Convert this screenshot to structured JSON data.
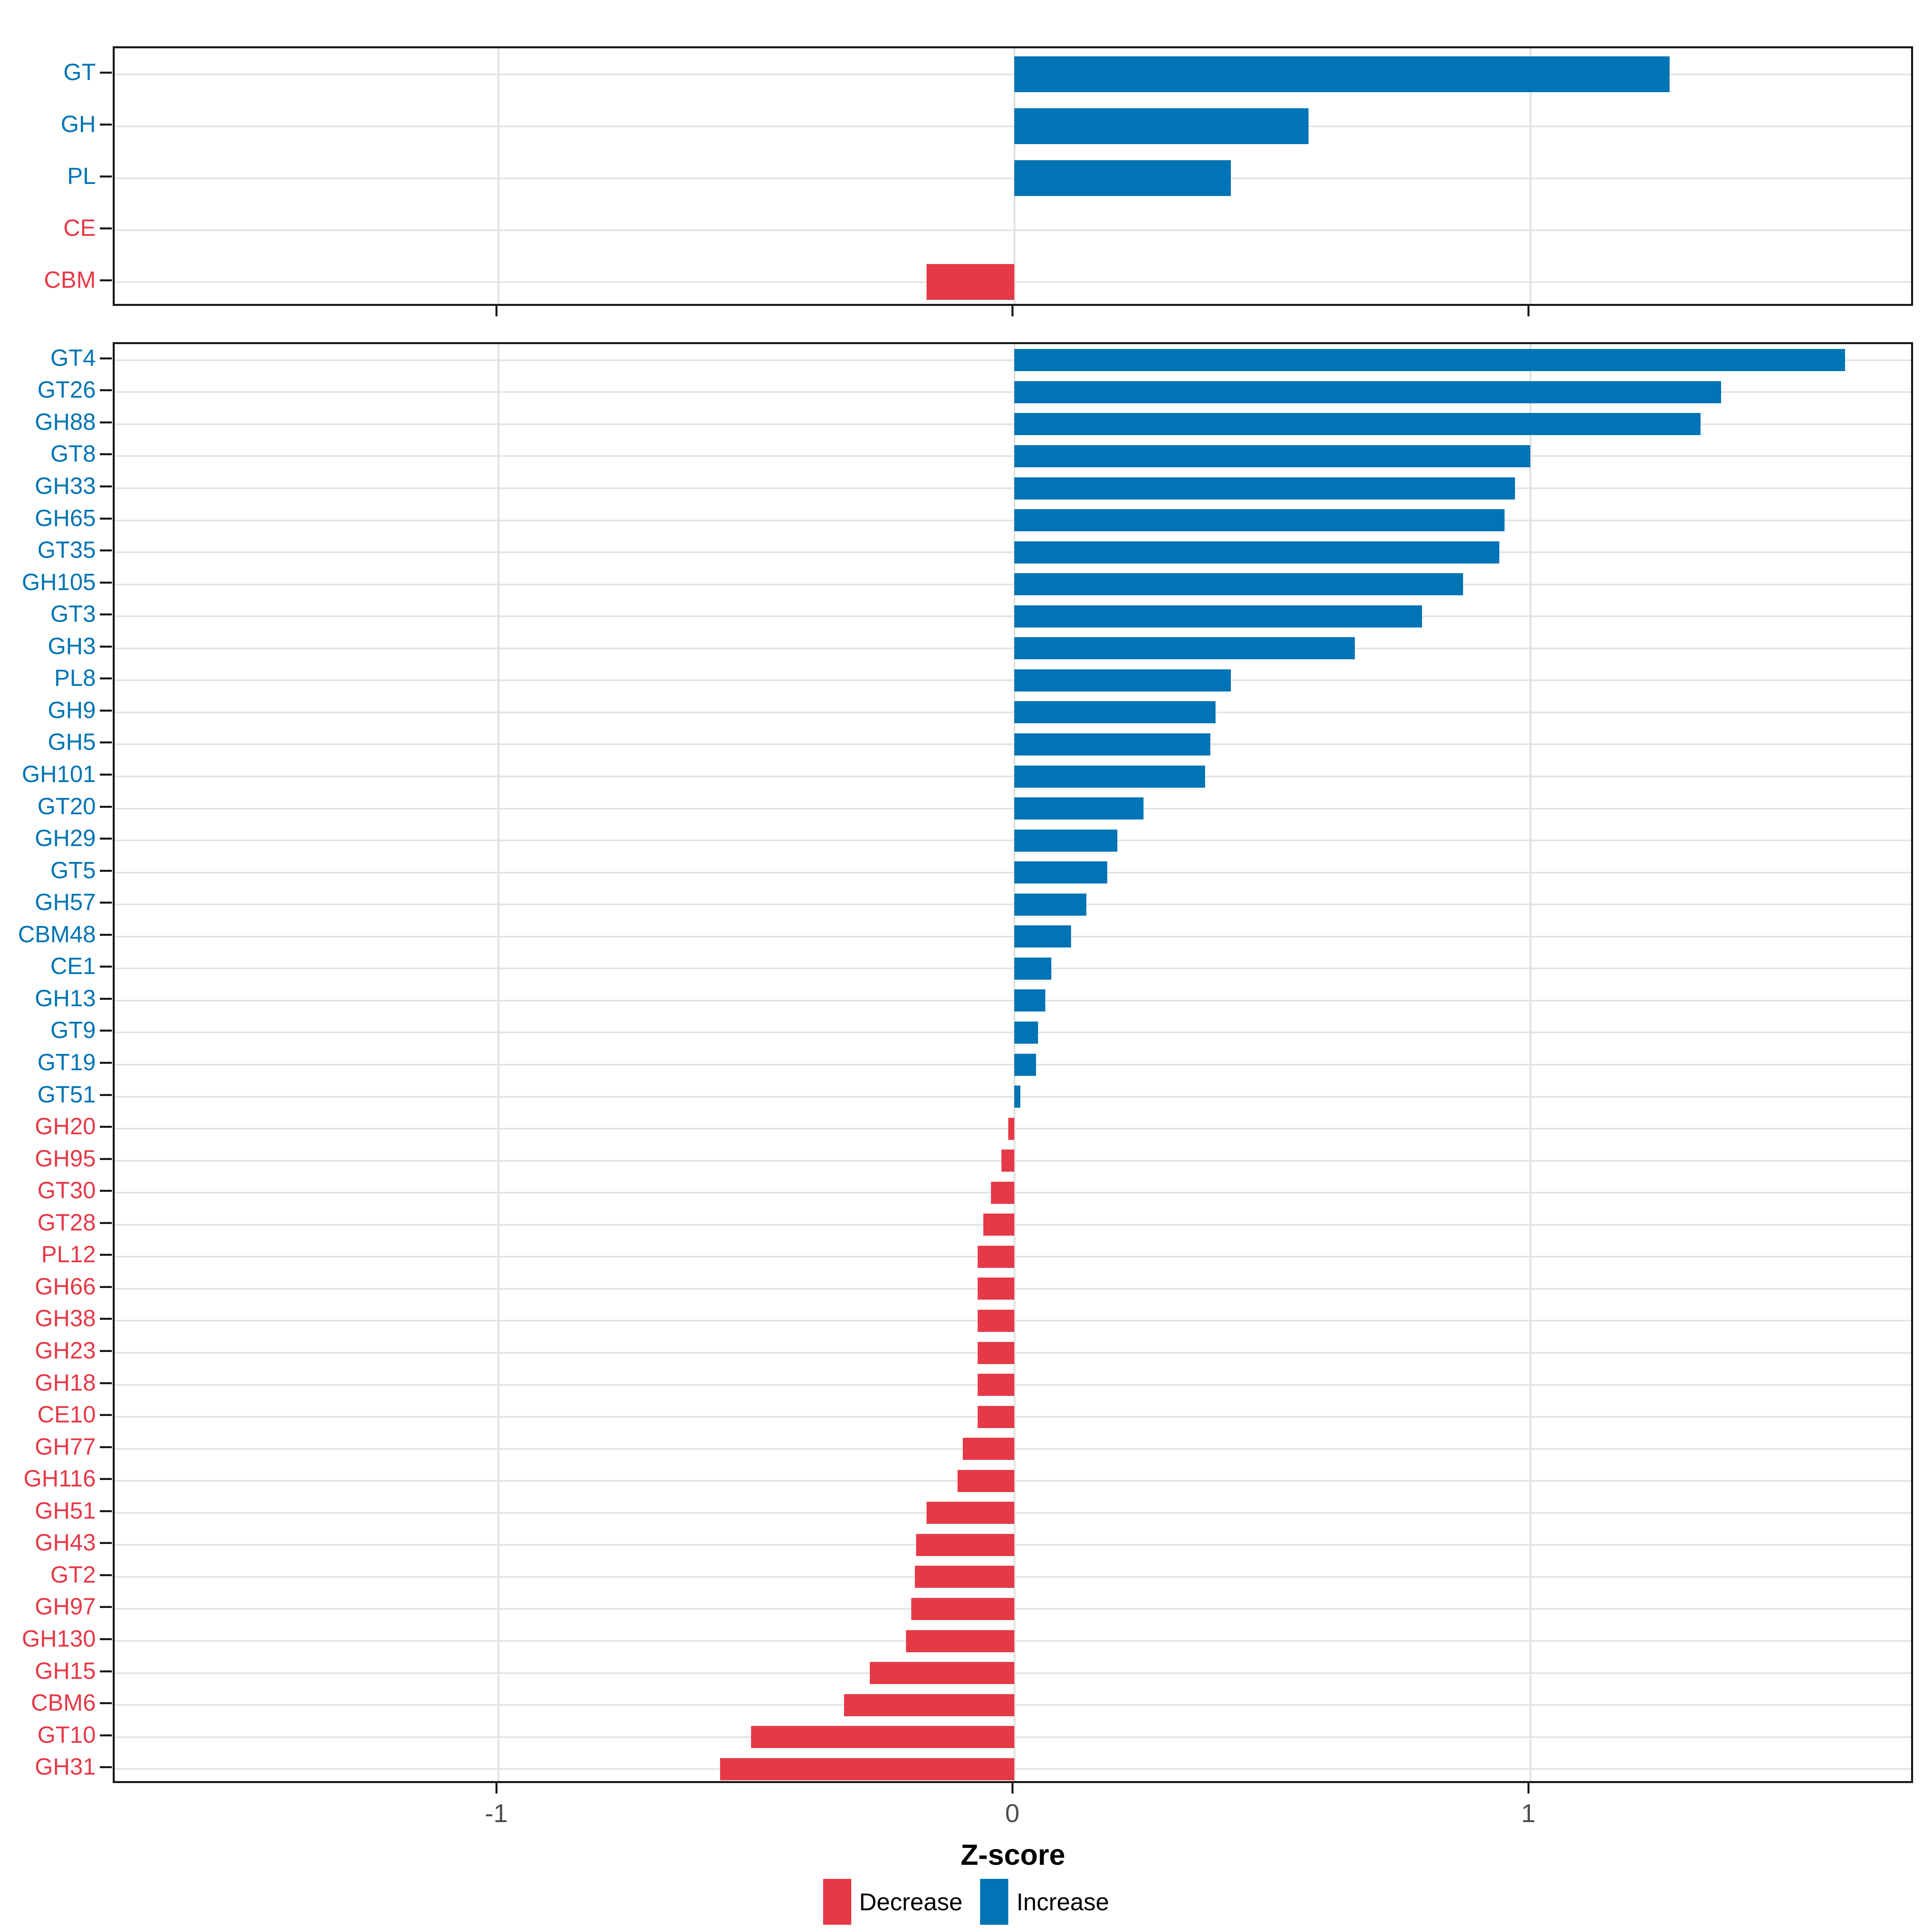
{
  "chart_data": [
    {
      "type": "bar",
      "orientation": "horizontal",
      "panel": "cazyme-classes",
      "categories": [
        "GT",
        "GH",
        "PL",
        "CE",
        "CBM"
      ],
      "values": [
        1.27,
        0.57,
        0.42,
        0.0,
        -0.17
      ],
      "directions": [
        "increase",
        "increase",
        "increase",
        "decrease",
        "decrease"
      ],
      "xlabel": "Z-score",
      "xlim": [
        -1.745,
        1.745
      ],
      "xticks": [
        -1,
        0,
        1
      ],
      "grid": true,
      "legend_position": "bottom"
    },
    {
      "type": "bar",
      "orientation": "horizontal",
      "panel": "cazyme-families",
      "categories": [
        "GT4",
        "GT26",
        "GH88",
        "GT8",
        "GH33",
        "GH65",
        "GT35",
        "GH105",
        "GT3",
        "GH3",
        "PL8",
        "GH9",
        "GH5",
        "GH101",
        "GT20",
        "GH29",
        "GT5",
        "GH57",
        "CBM48",
        "CE1",
        "GH13",
        "GT9",
        "GT19",
        "GT51",
        "GH20",
        "GH95",
        "GT30",
        "GT28",
        "PL12",
        "GH66",
        "GH38",
        "GH23",
        "GH18",
        "CE10",
        "GH77",
        "GH116",
        "GH51",
        "GH43",
        "GT2",
        "GH97",
        "GH130",
        "GH15",
        "CBM6",
        "GT10",
        "GH31"
      ],
      "values": [
        1.61,
        1.37,
        1.33,
        1.0,
        0.97,
        0.95,
        0.94,
        0.87,
        0.79,
        0.66,
        0.42,
        0.39,
        0.38,
        0.37,
        0.25,
        0.2,
        0.18,
        0.14,
        0.11,
        0.072,
        0.06,
        0.046,
        0.042,
        0.012,
        -0.012,
        -0.025,
        -0.045,
        -0.06,
        -0.071,
        -0.071,
        -0.071,
        -0.071,
        -0.071,
        -0.071,
        -0.1,
        -0.11,
        -0.17,
        -0.19,
        -0.193,
        -0.2,
        -0.21,
        -0.28,
        -0.33,
        -0.51,
        -0.57
      ],
      "directions": [
        "increase",
        "increase",
        "increase",
        "increase",
        "increase",
        "increase",
        "increase",
        "increase",
        "increase",
        "increase",
        "increase",
        "increase",
        "increase",
        "increase",
        "increase",
        "increase",
        "increase",
        "increase",
        "increase",
        "increase",
        "increase",
        "increase",
        "increase",
        "increase",
        "decrease",
        "decrease",
        "decrease",
        "decrease",
        "decrease",
        "decrease",
        "decrease",
        "decrease",
        "decrease",
        "decrease",
        "decrease",
        "decrease",
        "decrease",
        "decrease",
        "decrease",
        "decrease",
        "decrease",
        "decrease",
        "decrease",
        "decrease",
        "decrease"
      ],
      "xlabel": "Z-score",
      "xlim": [
        -1.745,
        1.745
      ],
      "xticks": [
        -1,
        0,
        1
      ],
      "grid": true,
      "legend_position": "bottom"
    }
  ],
  "xaxis": {
    "label": "Z-score",
    "tick_labels": [
      "-1",
      "0",
      "1"
    ]
  },
  "legend": {
    "items": [
      {
        "label": "Decrease",
        "color": "#E63947"
      },
      {
        "label": "Increase",
        "color": "#0074B4"
      }
    ]
  },
  "colors": {
    "increase": "#0074B4",
    "decrease": "#E63947",
    "gridline": "#e3e3e3",
    "panel_border": "#1a1a1a",
    "tick_label": "#4d4d4d",
    "background": "#ffffff"
  }
}
